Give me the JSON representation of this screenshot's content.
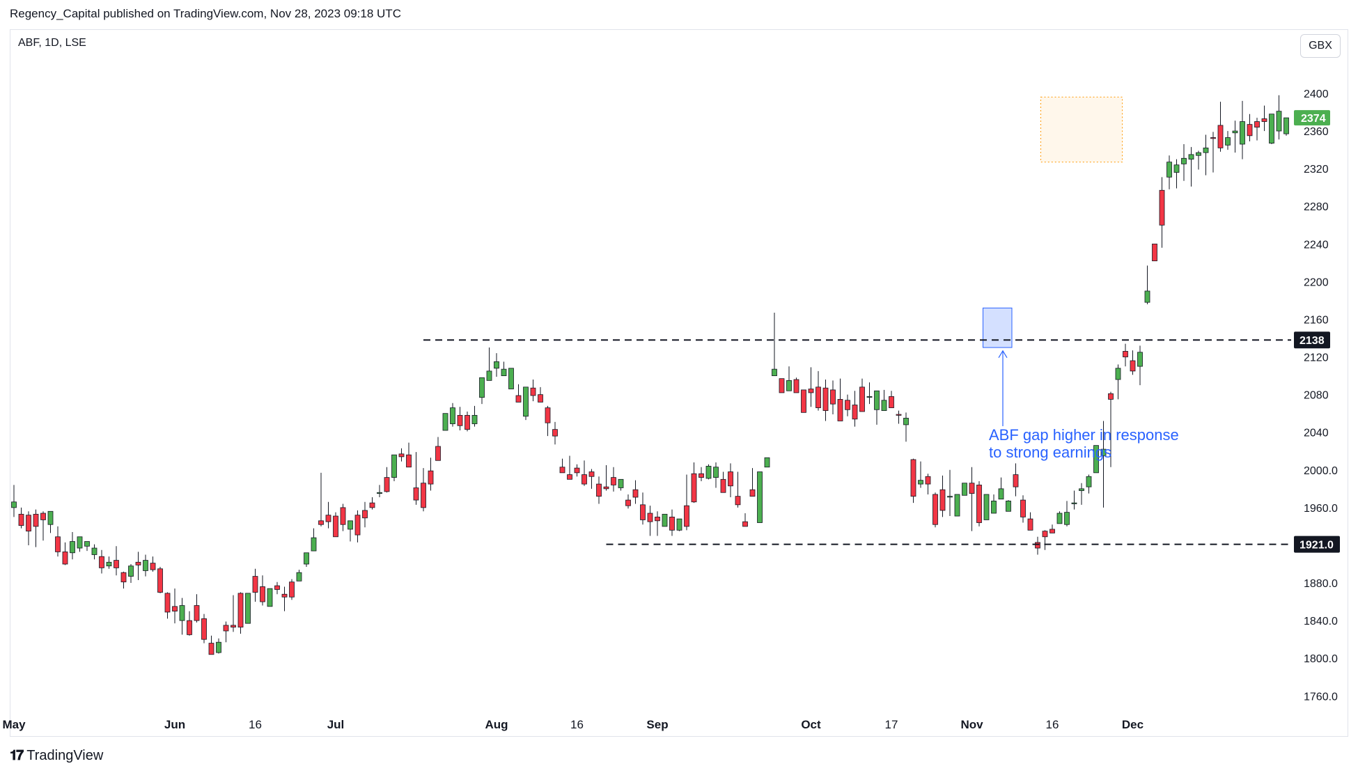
{
  "header": {
    "publish_line": "Regency_Capital published on TradingView.com, Nov 28, 2023 09:18 UTC",
    "symbol": "ABF, 1D, LSE",
    "currency": "GBX"
  },
  "footer": {
    "brand": "TradingView",
    "logo_glyph": "𝟏𝟕"
  },
  "colors": {
    "up": "#4caf50",
    "down": "#f23645",
    "text": "#131722",
    "annotation": "#2962ff"
  },
  "chart_data": {
    "type": "candlestick",
    "x_ticks": [
      {
        "label": "May",
        "bar": 0
      },
      {
        "label": "Jun",
        "bar": 22
      },
      {
        "label": "16",
        "bar": 33
      },
      {
        "label": "Jul",
        "bar": 44
      },
      {
        "label": "Aug",
        "bar": 66
      },
      {
        "label": "16",
        "bar": 77
      },
      {
        "label": "Sep",
        "bar": 88
      },
      {
        "label": "Oct",
        "bar": 109
      },
      {
        "label": "17",
        "bar": 120
      },
      {
        "label": "Nov",
        "bar": 131
      },
      {
        "label": "16",
        "bar": 142
      },
      {
        "label": "Dec",
        "bar": 153
      }
    ],
    "y_ticks": [
      "2400",
      "2360",
      "2320",
      "2280",
      "2240",
      "2200",
      "2160",
      "2120",
      "2080",
      "2040",
      "2000.0",
      "1960.0",
      "1880.0",
      "1840.0",
      "1800.0",
      "1760.0"
    ],
    "y_tick_values": [
      2400,
      2360,
      2320,
      2280,
      2240,
      2200,
      2160,
      2120,
      2080,
      2040,
      2000,
      1960,
      1880,
      1840,
      1800,
      1760
    ],
    "ylim": [
      1744,
      2430
    ],
    "last_price": {
      "label": "2374",
      "value": 2374
    },
    "levels": [
      {
        "label": "2138",
        "value": 2138,
        "from_bar": 56
      },
      {
        "label": "1921.0",
        "value": 1921,
        "from_bar": 81
      }
    ],
    "gap_box": {
      "from_bar": 133,
      "to_bar": 136,
      "low": 2130,
      "high": 2172
    },
    "range_box": {
      "from_bar": 141,
      "to_bar": 151,
      "low": 2327,
      "high": 2396
    },
    "annotation": {
      "lines": [
        "ABF gap higher in response",
        "to strong earnings"
      ],
      "bar": 136,
      "price": 2128
    },
    "candles": [
      [
        1960,
        1984,
        1966,
        1950
      ],
      [
        1953,
        1960,
        1941,
        1938
      ],
      [
        1952,
        1956,
        1935,
        1920
      ],
      [
        1953,
        1958,
        1940,
        1918
      ],
      [
        1954,
        1956,
        1947,
        1925
      ],
      [
        1942,
        1953,
        1956,
        1933
      ],
      [
        1929,
        1940,
        1913,
        1908
      ],
      [
        1913,
        1923,
        1900,
        1899
      ],
      [
        1912,
        1934,
        1924,
        1905
      ],
      [
        1917,
        1929,
        1929,
        1913
      ],
      [
        1919,
        1922,
        1924,
        1914
      ],
      [
        1910,
        1921,
        1917,
        1905
      ],
      [
        1908,
        1915,
        1896,
        1890
      ],
      [
        1898,
        1908,
        1902,
        1895
      ],
      [
        1904,
        1919,
        1896,
        1888
      ],
      [
        1891,
        1892,
        1881,
        1874
      ],
      [
        1887,
        1900,
        1898,
        1880
      ],
      [
        1902,
        1913,
        1899,
        1883
      ],
      [
        1893,
        1910,
        1904,
        1887
      ],
      [
        1901,
        1908,
        1894,
        1892
      ],
      [
        1895,
        1897,
        1870,
        1869
      ],
      [
        1869,
        1870,
        1849,
        1842
      ],
      [
        1855,
        1874,
        1850,
        1837
      ],
      [
        1840,
        1864,
        1856,
        1825
      ],
      [
        1840,
        1850,
        1825,
        1824
      ],
      [
        1856,
        1868,
        1840,
        1838
      ],
      [
        1842,
        1847,
        1820,
        1816
      ],
      [
        1816,
        1824,
        1804,
        1807
      ],
      [
        1806,
        1821,
        1817,
        1805
      ],
      [
        1835,
        1839,
        1829,
        1817
      ],
      [
        1835,
        1867,
        1833,
        1828
      ],
      [
        1869,
        1870,
        1833,
        1826
      ],
      [
        1837,
        1855,
        1869,
        1842
      ],
      [
        1887,
        1895,
        1870,
        1860
      ],
      [
        1876,
        1888,
        1860,
        1856
      ],
      [
        1855,
        1860,
        1874,
        1863
      ],
      [
        1877,
        1881,
        1873,
        1868
      ],
      [
        1868,
        1876,
        1865,
        1850
      ],
      [
        1881,
        1884,
        1865,
        1862
      ],
      [
        1882,
        1894,
        1891,
        1882
      ],
      [
        1900,
        1909,
        1912,
        1897
      ],
      [
        1914,
        1938,
        1928,
        1932
      ],
      [
        1946,
        1997,
        1942,
        1940
      ],
      [
        1952,
        1966,
        1945,
        1938
      ],
      [
        1951,
        1955,
        1929,
        1934
      ],
      [
        1960,
        1964,
        1942,
        1935
      ],
      [
        1937,
        1946,
        1946,
        1924
      ],
      [
        1952,
        1957,
        1931,
        1923
      ],
      [
        1957,
        1966,
        1949,
        1939
      ],
      [
        1965,
        1971,
        1960,
        1958
      ],
      [
        1975,
        1984,
        1976,
        1971
      ],
      [
        1992,
        2003,
        1977,
        1976
      ],
      [
        1992,
        2008,
        2016,
        1988
      ],
      [
        2017,
        2023,
        2014,
        2009
      ],
      [
        2016,
        2029,
        2003,
        2012
      ],
      [
        1981,
        2019,
        1968,
        1963
      ],
      [
        1986,
        2002,
        1960,
        1956
      ],
      [
        1999,
        2013,
        1985,
        1978
      ],
      [
        2025,
        2035,
        2010,
        2013
      ],
      [
        2042,
        2058,
        2060,
        2048
      ],
      [
        2049,
        2071,
        2066,
        2046
      ],
      [
        2058,
        2067,
        2047,
        2042
      ],
      [
        2058,
        2062,
        2043,
        2041
      ],
      [
        2049,
        2068,
        2058,
        2046
      ],
      [
        2077,
        2083,
        2098,
        2070
      ],
      [
        2095,
        2130,
        2105,
        2107
      ],
      [
        2108,
        2124,
        2115,
        2099
      ],
      [
        2100,
        2115,
        2107,
        2103
      ],
      [
        2086,
        2105,
        2108,
        2093
      ],
      [
        2079,
        2091,
        2072,
        2076
      ],
      [
        2057,
        2063,
        2088,
        2053
      ],
      [
        2087,
        2096,
        2079,
        2073
      ],
      [
        2080,
        2088,
        2072,
        2072
      ],
      [
        2066,
        2068,
        2050,
        2036
      ],
      [
        2043,
        2051,
        2036,
        2027
      ],
      [
        2003,
        2012,
        1997,
        1999
      ],
      [
        1995,
        2015,
        1990,
        1992
      ],
      [
        2002,
        2006,
        1997,
        1993
      ],
      [
        1995,
        2010,
        1985,
        1983
      ],
      [
        1998,
        2001,
        1993,
        1980
      ],
      [
        1985,
        1993,
        1972,
        1964
      ],
      [
        1982,
        2005,
        1980,
        1978
      ],
      [
        1992,
        2003,
        1984,
        1977
      ],
      [
        1981,
        1986,
        1990,
        1978
      ],
      [
        1968,
        1974,
        1962,
        1959
      ],
      [
        1979,
        1989,
        1971,
        1964
      ],
      [
        1963,
        1976,
        1947,
        1942
      ],
      [
        1954,
        1962,
        1945,
        1930
      ],
      [
        1950,
        1956,
        1946,
        1930
      ],
      [
        1940,
        1941,
        1953,
        1948
      ],
      [
        1950,
        1958,
        1936,
        1930
      ],
      [
        1936,
        1946,
        1948,
        1935
      ],
      [
        1962,
        1995,
        1940,
        1936
      ],
      [
        1996,
        2008,
        1966,
        1965
      ],
      [
        1996,
        2003,
        1992,
        1988
      ],
      [
        1991,
        2006,
        2004,
        1990
      ],
      [
        1992,
        2008,
        2003,
        1981
      ],
      [
        1990,
        1998,
        1976,
        1981
      ],
      [
        1998,
        2007,
        1983,
        1971
      ],
      [
        1972,
        1998,
        1963,
        1960
      ],
      [
        1945,
        1954,
        1940,
        1944
      ],
      [
        1979,
        2002,
        1972,
        1975
      ],
      [
        1944,
        1946,
        1998,
        1944
      ],
      [
        2003,
        2007,
        2013,
        2012
      ],
      [
        2100,
        2167,
        2107,
        2100
      ],
      [
        2097,
        2088,
        2082,
        2084
      ],
      [
        2084,
        2110,
        2095,
        2086
      ],
      [
        2096,
        2098,
        2082,
        2091
      ],
      [
        2085,
        2085,
        2061,
        2067
      ],
      [
        2086,
        2109,
        2082,
        2067
      ],
      [
        2088,
        2105,
        2066,
        2063
      ],
      [
        2087,
        2096,
        2063,
        2052
      ],
      [
        2085,
        2095,
        2070,
        2059
      ],
      [
        2075,
        2097,
        2052,
        2063
      ],
      [
        2074,
        2080,
        2064,
        2057
      ],
      [
        2069,
        2084,
        2054,
        2046
      ],
      [
        2088,
        2097,
        2062,
        2069
      ],
      [
        2078,
        2093,
        2078,
        2070
      ],
      [
        2064,
        2072,
        2084,
        2048
      ],
      [
        2063,
        2085,
        2074,
        2064
      ],
      [
        2078,
        2084,
        2066,
        2066
      ],
      [
        2059,
        2063,
        2058,
        2049
      ],
      [
        2048,
        2061,
        2055,
        2030
      ],
      [
        2011,
        2012,
        1972,
        1965
      ],
      [
        1985,
        2009,
        1989,
        1981
      ],
      [
        1993,
        1996,
        1985,
        1974
      ],
      [
        1974,
        1976,
        1942,
        1939
      ],
      [
        1979,
        1994,
        1957,
        1950
      ],
      [
        1972,
        2000,
        1972,
        1951
      ],
      [
        1951,
        1963,
        1974,
        1951
      ],
      [
        1973,
        1977,
        1986,
        1973
      ],
      [
        1986,
        2003,
        1975,
        1935
      ],
      [
        1984,
        1988,
        1944,
        1940
      ],
      [
        1947,
        1957,
        1974,
        1953
      ],
      [
        1954,
        1974,
        1967,
        1954
      ],
      [
        1969,
        1992,
        1980,
        1974
      ],
      [
        1956,
        1968,
        1967,
        1961
      ],
      [
        1995,
        2007,
        1982,
        1972
      ],
      [
        1968,
        1973,
        1950,
        1944
      ],
      [
        1948,
        1955,
        1936,
        1936
      ],
      [
        1923,
        1929,
        1917,
        1910
      ],
      [
        1935,
        1936,
        1929,
        1915
      ],
      [
        1937,
        1942,
        1933,
        1941
      ],
      [
        1943,
        1956,
        1954,
        1945
      ],
      [
        1942,
        1967,
        1955,
        1940
      ],
      [
        1964,
        1978,
        1965,
        1958
      ],
      [
        1978,
        1986,
        1980,
        1963
      ],
      [
        1982,
        1995,
        1993,
        1975
      ],
      [
        1997,
        2011,
        2026,
        1998
      ],
      [
        2015,
        2052,
        2022,
        1960
      ],
      [
        2081,
        2083,
        2075,
        2003
      ],
      [
        2096,
        2112,
        2108,
        2075
      ],
      [
        2126,
        2134,
        2120,
        2110
      ],
      [
        2116,
        2127,
        2105,
        2101
      ],
      [
        2110,
        2132,
        2125,
        2090
      ],
      [
        2178,
        2217,
        2190,
        2176
      ],
      [
        2240,
        2225,
        2222,
        2236
      ],
      [
        2297,
        2311,
        2260,
        2236
      ],
      [
        2311,
        2334,
        2327,
        2298
      ],
      [
        2316,
        2330,
        2324,
        2299
      ],
      [
        2325,
        2346,
        2331,
        2307
      ],
      [
        2330,
        2343,
        2335,
        2301
      ],
      [
        2334,
        2339,
        2337,
        2319
      ],
      [
        2337,
        2356,
        2342,
        2313
      ],
      [
        2353,
        2359,
        2352,
        2316
      ],
      [
        2366,
        2391,
        2342,
        2338
      ],
      [
        2345,
        2360,
        2353,
        2340
      ],
      [
        2358,
        2371,
        2360,
        2337
      ],
      [
        2346,
        2392,
        2370,
        2330
      ],
      [
        2367,
        2378,
        2355,
        2349
      ],
      [
        2370,
        2374,
        2364,
        2350
      ],
      [
        2373,
        2387,
        2370,
        2360
      ],
      [
        2347,
        2356,
        2378,
        2346
      ],
      [
        2360,
        2398,
        2381,
        2351
      ],
      [
        2357,
        2364,
        2374,
        2355
      ]
    ]
  }
}
